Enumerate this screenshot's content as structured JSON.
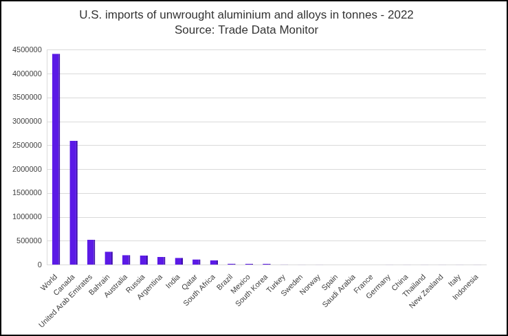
{
  "chart_data": {
    "type": "bar",
    "title": "U.S. imports of unwrought aluminium and alloys in tonnes - 2022",
    "subtitle": "Source: Trade Data Monitor",
    "categories": [
      "World",
      "Canada",
      "United Arab Emirates",
      "Bahrain",
      "Australia",
      "Russia",
      "Argentina",
      "India",
      "Qatar",
      "South Africa",
      "Brazil",
      "Mexico",
      "South Korea",
      "Turkey",
      "Sweden",
      "Norway",
      "Spain",
      "Saudi Arabia",
      "France",
      "Germany",
      "China",
      "Thailand",
      "New Zealand",
      "Italy",
      "Indonesia"
    ],
    "values": [
      4420000,
      2600000,
      530000,
      280000,
      210000,
      200000,
      170000,
      150000,
      120000,
      100000,
      30000,
      25000,
      25000,
      15000,
      12000,
      10000,
      8000,
      7000,
      6000,
      5000,
      5000,
      4000,
      4000,
      3000,
      3000
    ],
    "color": "#5b1ae6",
    "ylim": [
      0,
      4500000
    ],
    "yticks": [
      0,
      500000,
      1000000,
      1500000,
      2000000,
      2500000,
      3000000,
      3500000,
      4000000,
      4500000
    ],
    "grid": true
  }
}
